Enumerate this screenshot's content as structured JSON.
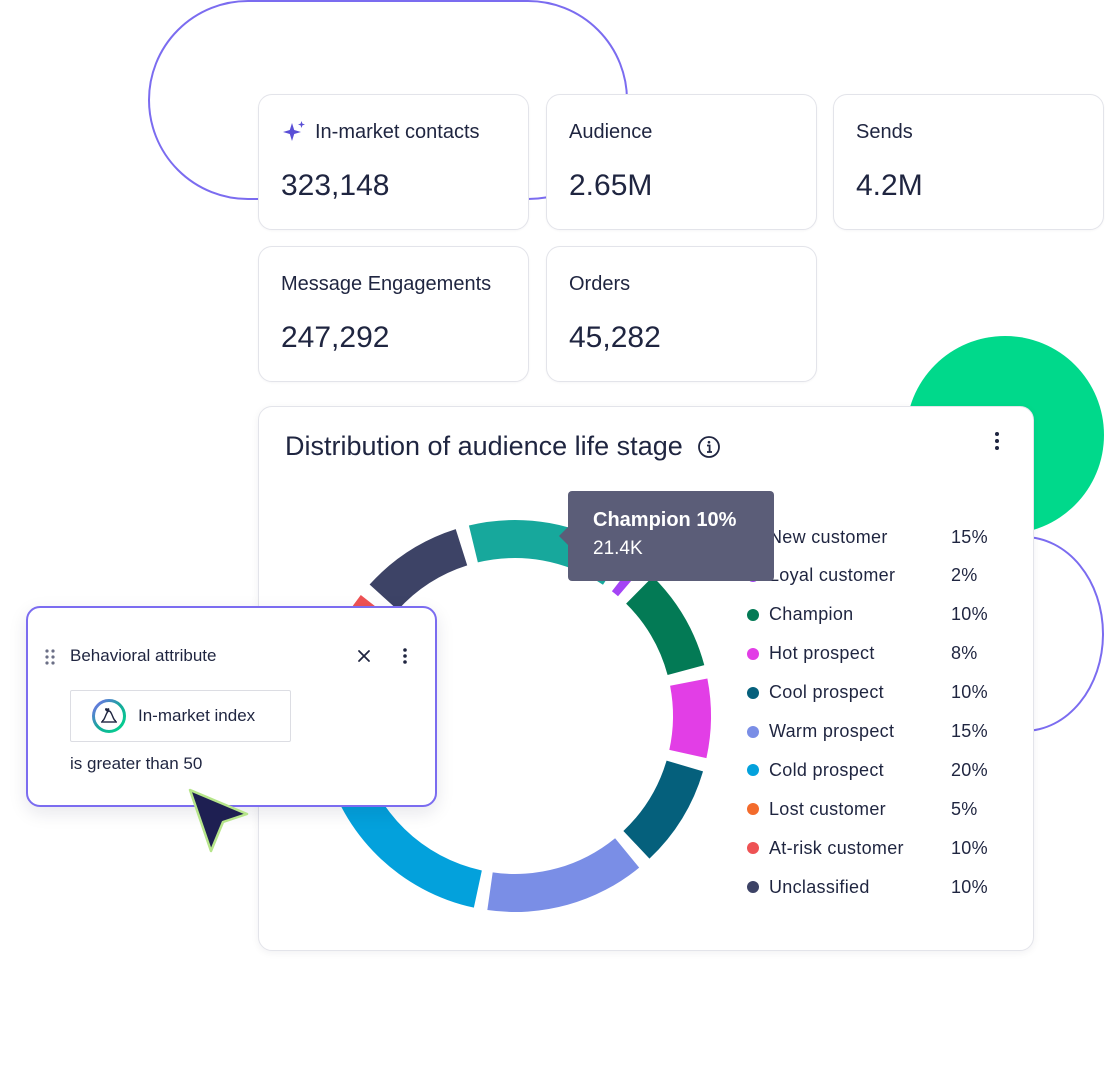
{
  "stats": [
    {
      "label": "In-market contacts",
      "value": "323,148",
      "icon": "sparkle-icon"
    },
    {
      "label": "Audience",
      "value": "2.65M"
    },
    {
      "label": "Sends",
      "value": "4.2M"
    },
    {
      "label": "Message Engagements",
      "value": "247,292"
    },
    {
      "label": "Orders",
      "value": "45,282"
    }
  ],
  "chart_title": "Distribution of audience life stage",
  "tooltip": {
    "title": "Champion 10%",
    "value": "21.4K"
  },
  "filter": {
    "title": "Behavioral attribute",
    "chip_label": "In-market index",
    "condition": "is greater than 50"
  },
  "colors": {
    "accent_purple": "#7b6cf0",
    "accent_green": "#00d98b",
    "tooltip_bg": "#5b5d78",
    "text": "#1f2540"
  },
  "chart_data": {
    "type": "pie",
    "title": "Distribution of audience life stage",
    "legend_position": "right",
    "series": [
      {
        "name": "New customer",
        "value": 15,
        "label": "15%",
        "color": "#17a89c"
      },
      {
        "name": "Loyal customer",
        "value": 2,
        "label": "2%",
        "color": "#a444f5"
      },
      {
        "name": "Champion",
        "value": 10,
        "label": "10%",
        "color": "#037a55"
      },
      {
        "name": "Hot prospect",
        "value": 8,
        "label": "8%",
        "color": "#e23ee6"
      },
      {
        "name": "Cool prospect",
        "value": 10,
        "label": "10%",
        "color": "#05607c"
      },
      {
        "name": "Warm prospect",
        "value": 15,
        "label": "15%",
        "color": "#7a8ee6"
      },
      {
        "name": "Cold prospect",
        "value": 20,
        "label": "20%",
        "color": "#03a1dc"
      },
      {
        "name": "Lost customer",
        "value": 5,
        "label": "5%",
        "color": "#f36b2c"
      },
      {
        "name": "At-risk customer",
        "value": 10,
        "label": "10%",
        "color": "#ee5254"
      },
      {
        "name": "Unclassified",
        "value": 10,
        "label": "10%",
        "color": "#3d4366"
      }
    ]
  }
}
